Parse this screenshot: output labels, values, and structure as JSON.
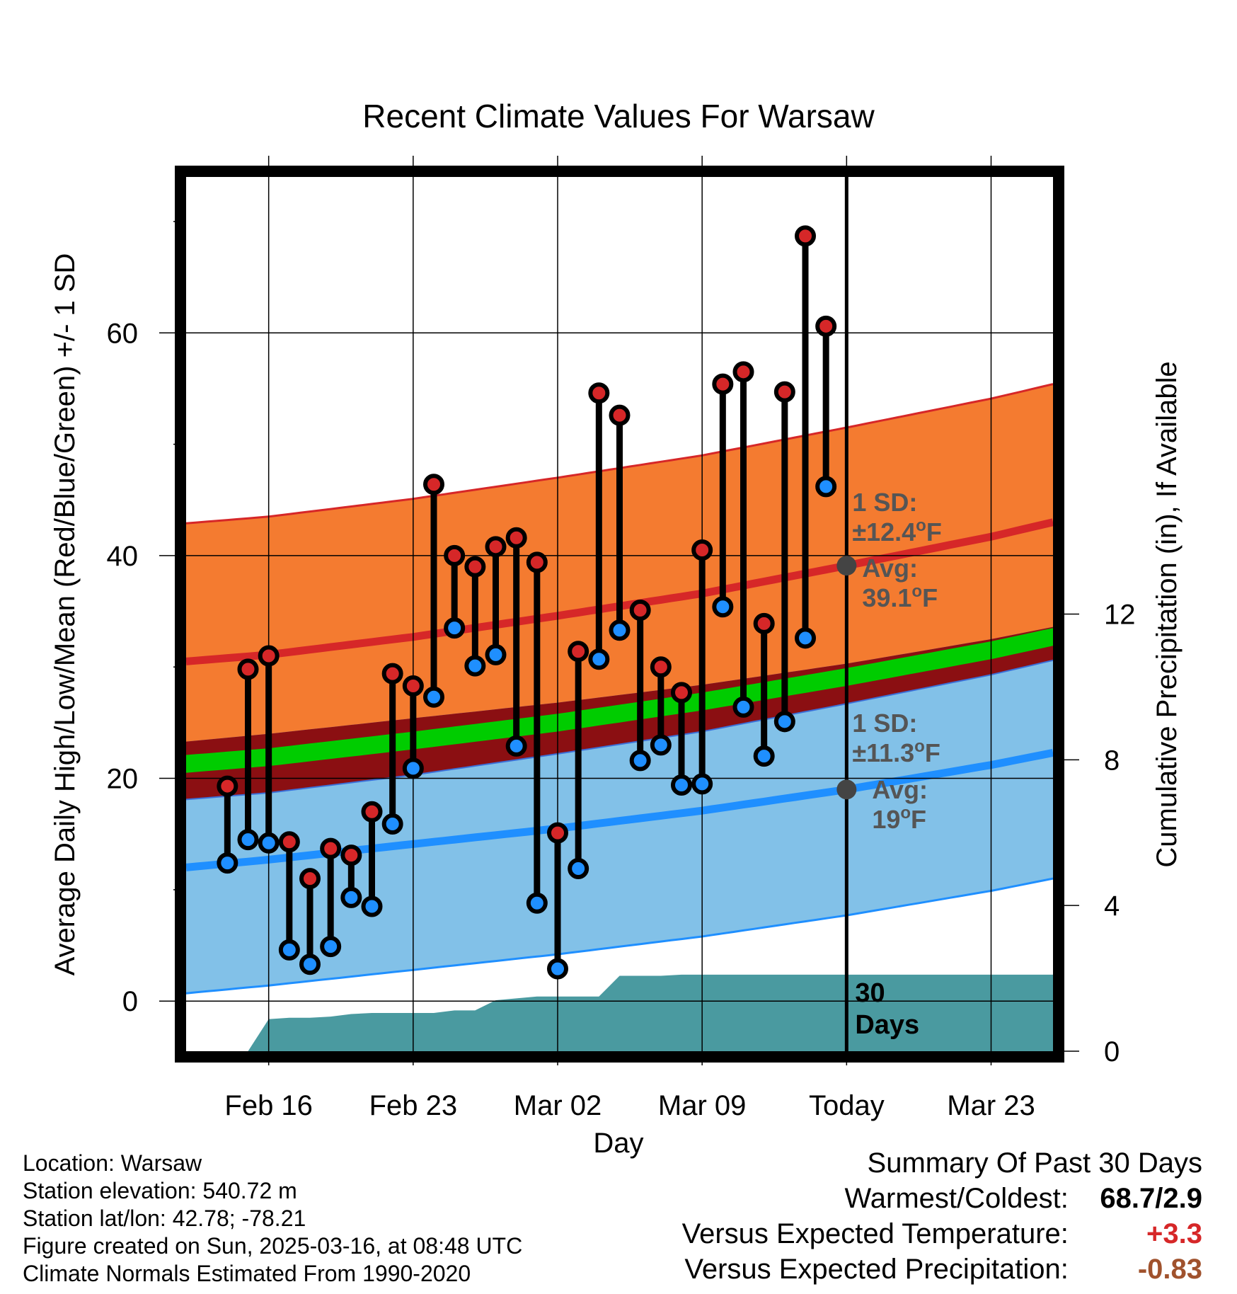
{
  "chart_data": {
    "type": "line",
    "title": "Recent Climate Values For Warsaw",
    "xlabel": "Day",
    "ylabel": "Average Daily High/Low/Mean (Red/Blue/Green) +/- 1 SD",
    "y2label": "Cumulative Precipitation (in), If Available",
    "xlim": [
      "2025-02-12",
      "2025-03-26"
    ],
    "ylim": [
      -4.5,
      74
    ],
    "y2lim": [
      0,
      24
    ],
    "x_ticks": [
      {
        "date": "2025-02-16",
        "label": "Feb 16"
      },
      {
        "date": "2025-02-23",
        "label": "Feb 23"
      },
      {
        "date": "2025-03-02",
        "label": "Mar 02"
      },
      {
        "date": "2025-03-09",
        "label": "Mar 09"
      },
      {
        "date": "2025-03-16",
        "label": "Today"
      },
      {
        "date": "2025-03-23",
        "label": "Mar 23"
      }
    ],
    "y_ticks": [
      0,
      20,
      40,
      60
    ],
    "y2_ticks": [
      0,
      4,
      8,
      12
    ],
    "grid": true,
    "today": "2025-03-16",
    "window_label": "30\nDays",
    "normals": {
      "dates": [
        "2025-02-12",
        "2025-02-16",
        "2025-02-23",
        "2025-03-02",
        "2025-03-09",
        "2025-03-16",
        "2025-03-23",
        "2025-03-26"
      ],
      "avg_high": [
        30.5,
        31.1,
        32.7,
        34.6,
        36.6,
        39.1,
        41.7,
        43.0
      ],
      "avg_low": [
        12.0,
        12.7,
        14.1,
        15.5,
        17.1,
        19.0,
        21.2,
        22.3
      ],
      "avg_mean": [
        21.3,
        21.9,
        23.4,
        25.0,
        26.9,
        29.1,
        31.5,
        32.7
      ],
      "high_sd": 12.4,
      "low_sd": 11.3,
      "high_label": {
        "sd": "1 SD:",
        "sd_value": "±12.4",
        "avg": "Avg:",
        "avg_value": "39.1",
        "unit": "F"
      },
      "low_label": {
        "sd": "1 SD:",
        "sd_value": "±11.3",
        "avg": "Avg:",
        "avg_value": "19",
        "unit": "F"
      }
    },
    "series": [
      {
        "name": "High",
        "color": "#d62728",
        "x": [
          "2025-02-14",
          "2025-02-15",
          "2025-02-16",
          "2025-02-17",
          "2025-02-18",
          "2025-02-19",
          "2025-02-20",
          "2025-02-21",
          "2025-02-22",
          "2025-02-23",
          "2025-02-24",
          "2025-02-25",
          "2025-02-26",
          "2025-02-27",
          "2025-02-28",
          "2025-03-01",
          "2025-03-02",
          "2025-03-03",
          "2025-03-04",
          "2025-03-05",
          "2025-03-06",
          "2025-03-07",
          "2025-03-08",
          "2025-03-09",
          "2025-03-10",
          "2025-03-11",
          "2025-03-12",
          "2025-03-13",
          "2025-03-14",
          "2025-03-15"
        ],
        "values": [
          19.3,
          29.8,
          31.0,
          14.3,
          11.0,
          13.7,
          13.1,
          17.0,
          29.4,
          28.3,
          46.4,
          40.0,
          39.0,
          40.8,
          41.6,
          39.4,
          15.1,
          31.4,
          54.6,
          52.6,
          35.1,
          30.0,
          27.7,
          40.5,
          55.4,
          56.5,
          33.9,
          54.7,
          68.7,
          60.6
        ]
      },
      {
        "name": "Low",
        "color": "#1f8fff",
        "x": [
          "2025-02-14",
          "2025-02-15",
          "2025-02-16",
          "2025-02-17",
          "2025-02-18",
          "2025-02-19",
          "2025-02-20",
          "2025-02-21",
          "2025-02-22",
          "2025-02-23",
          "2025-02-24",
          "2025-02-25",
          "2025-02-26",
          "2025-02-27",
          "2025-02-28",
          "2025-03-01",
          "2025-03-02",
          "2025-03-03",
          "2025-03-04",
          "2025-03-05",
          "2025-03-06",
          "2025-03-07",
          "2025-03-08",
          "2025-03-09",
          "2025-03-10",
          "2025-03-11",
          "2025-03-12",
          "2025-03-13",
          "2025-03-14",
          "2025-03-15"
        ],
        "values": [
          12.4,
          14.5,
          14.2,
          4.6,
          3.3,
          4.9,
          9.3,
          8.5,
          15.9,
          20.9,
          27.3,
          33.5,
          30.1,
          31.1,
          22.9,
          8.8,
          2.9,
          11.9,
          30.7,
          33.3,
          21.6,
          23.0,
          19.4,
          19.5,
          35.4,
          26.4,
          22.0,
          25.1,
          32.6,
          46.2
        ]
      },
      {
        "name": "Cumulative Precipitation",
        "color": "#4a9aa0",
        "x": [
          "2025-02-13",
          "2025-02-14",
          "2025-02-15",
          "2025-02-16",
          "2025-02-17",
          "2025-02-18",
          "2025-02-19",
          "2025-02-20",
          "2025-02-21",
          "2025-02-22",
          "2025-02-23",
          "2025-02-24",
          "2025-02-25",
          "2025-02-26",
          "2025-02-27",
          "2025-02-28",
          "2025-03-01",
          "2025-03-02",
          "2025-03-03",
          "2025-03-04",
          "2025-03-05",
          "2025-03-06",
          "2025-03-07",
          "2025-03-08",
          "2025-03-09",
          "2025-03-10",
          "2025-03-11",
          "2025-03-12",
          "2025-03-13",
          "2025-03-14",
          "2025-03-15",
          "2025-03-16",
          "2025-03-26"
        ],
        "values": [
          0.0,
          0.0,
          0.0,
          0.88,
          0.92,
          0.92,
          0.95,
          1.02,
          1.05,
          1.05,
          1.05,
          1.05,
          1.12,
          1.12,
          1.4,
          1.45,
          1.5,
          1.5,
          1.5,
          1.5,
          2.07,
          2.07,
          2.07,
          2.1,
          2.1,
          2.1,
          2.1,
          2.1,
          2.1,
          2.1,
          2.1,
          2.1,
          2.1
        ]
      }
    ]
  },
  "info": {
    "location": "Location: Warsaw",
    "elevation": "Station elevation: 540.72 m",
    "latlon": "Station lat/lon: 42.78; -78.21",
    "created": "Figure created on Sun, 2025-03-16, at 08:48 UTC",
    "normals_period": "Climate Normals Estimated From 1990-2020"
  },
  "summary": {
    "heading": "Summary Of Past 30 Days",
    "warm_cold_label": "Warmest/Coldest:",
    "warm_cold_value": "68.7/2.9",
    "temp_label": "Versus Expected Temperature:",
    "temp_value": "+3.3",
    "temp_color": "#d62728",
    "precip_label": "Versus Expected Precipitation:",
    "precip_value": "-0.83",
    "precip_color": "#a0522d"
  },
  "colors": {
    "high_band": "#f47b30",
    "high_line": "#d62728",
    "low_band": "#82c1e8",
    "low_line": "#1f8fff",
    "overlap": "#8b0f12",
    "mean_band": "#00cc00",
    "precip": "#4a9aa0",
    "sd_text": "#555555"
  }
}
